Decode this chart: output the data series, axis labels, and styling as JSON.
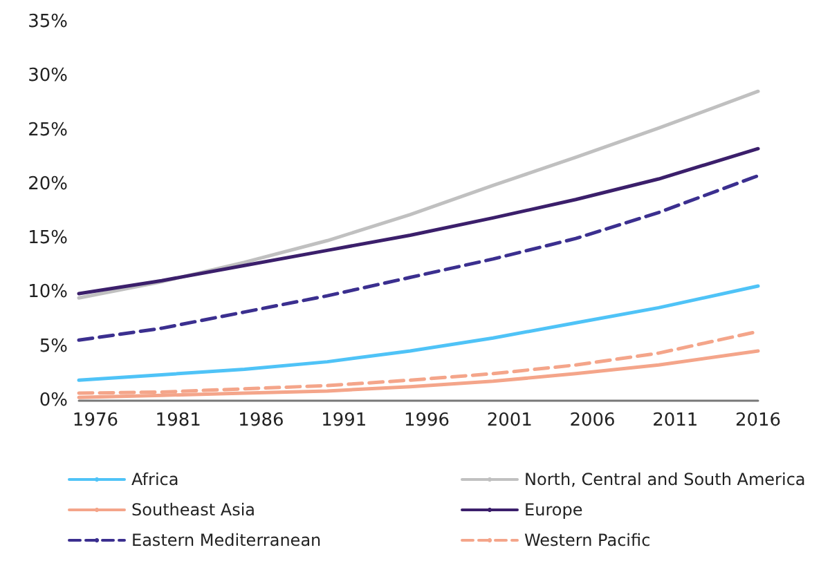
{
  "chart_data": {
    "type": "line",
    "x": [
      1975,
      1980,
      1985,
      1990,
      1995,
      2000,
      2005,
      2010,
      2016
    ],
    "xlim": [
      1975,
      2016
    ],
    "xticks": [
      1976,
      1981,
      1986,
      1991,
      1996,
      2001,
      2006,
      2011,
      2016
    ],
    "ylim": [
      0,
      35
    ],
    "yticks": [
      {
        "value": 0,
        "label": "0%"
      },
      {
        "value": 5,
        "label": "5%"
      },
      {
        "value": 10,
        "label": "10%"
      },
      {
        "value": 15,
        "label": "15%"
      },
      {
        "value": 20,
        "label": "20%"
      },
      {
        "value": 25,
        "label": "25%"
      },
      {
        "value": 30,
        "label": "30%"
      },
      {
        "value": 35,
        "label": "35%"
      }
    ],
    "grid": false,
    "legend": "bottom",
    "marker": "none",
    "series": [
      {
        "name": "Africa",
        "color": "#4fc3f7",
        "line_style": "solid",
        "values": [
          1.9,
          2.4,
          2.9,
          3.6,
          4.6,
          5.8,
          7.2,
          8.6,
          10.6
        ]
      },
      {
        "name": "North, Central and South America",
        "color": "#c0c0c0",
        "line_style": "solid",
        "values": [
          9.5,
          11.0,
          12.8,
          14.8,
          17.2,
          19.9,
          22.5,
          25.2,
          28.6
        ]
      },
      {
        "name": "Southeast Asia",
        "color": "#f4a58a",
        "line_style": "solid",
        "values": [
          0.3,
          0.5,
          0.7,
          0.9,
          1.3,
          1.8,
          2.5,
          3.3,
          4.6
        ]
      },
      {
        "name": "Europe",
        "color": "#3b1f6b",
        "line_style": "solid",
        "values": [
          9.9,
          11.1,
          12.5,
          13.9,
          15.3,
          16.9,
          18.6,
          20.5,
          23.3
        ]
      },
      {
        "name": "Eastern Mediterranean",
        "color": "#3b2f8f",
        "line_style": "dashed",
        "values": [
          5.6,
          6.7,
          8.2,
          9.7,
          11.4,
          13.1,
          15.0,
          17.4,
          20.8
        ]
      },
      {
        "name": "Western Pacific",
        "color": "#f4a58a",
        "line_style": "dashed",
        "values": [
          0.7,
          0.8,
          1.1,
          1.4,
          1.9,
          2.5,
          3.3,
          4.4,
          6.4
        ]
      }
    ]
  }
}
